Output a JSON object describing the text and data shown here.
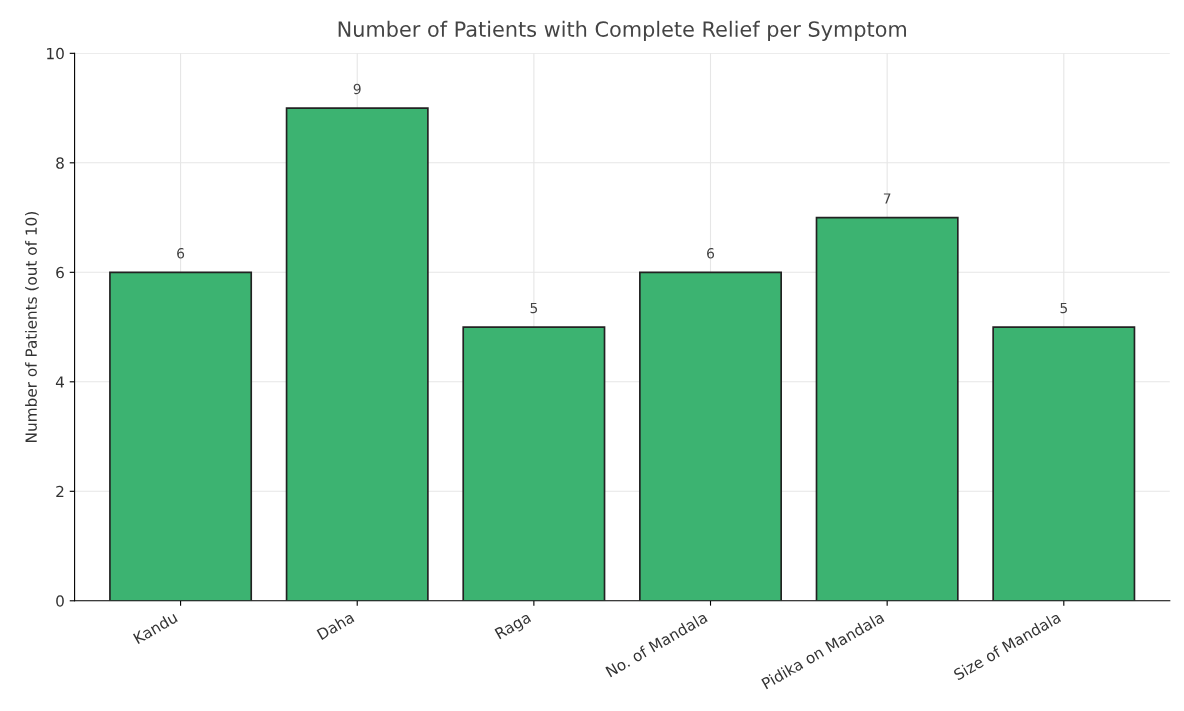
{
  "chart_data": {
    "type": "bar",
    "title": "Number of Patients with Complete Relief per Symptom",
    "ylabel": "Number of Patients (out of 10)",
    "categories": [
      "Kandu",
      "Daha",
      "Raga",
      "No. of Mandala",
      "Pidika on Mandala",
      "Size of Mandala"
    ],
    "values": [
      6,
      9,
      5,
      6,
      7,
      5
    ],
    "color": "#3cb371",
    "ylim": [
      0,
      10
    ],
    "yticks": [
      0,
      2,
      4,
      6,
      8,
      10
    ],
    "grid": true,
    "data_labels": true
  }
}
